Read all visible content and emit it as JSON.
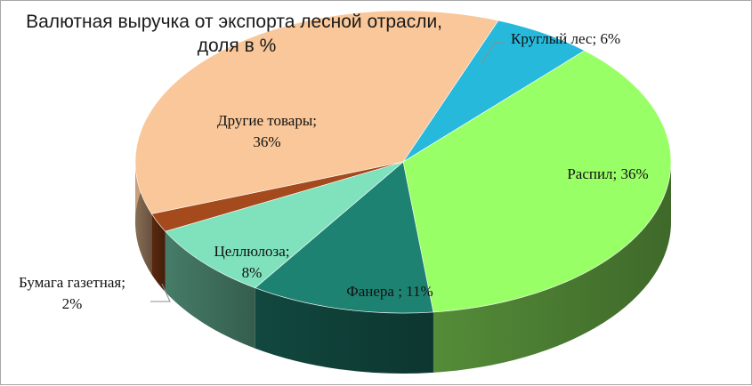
{
  "chart_data": {
    "type": "pie",
    "title_lines": [
      "Валютная выручка от экспорта лесной отрасли,",
      "доля в  %"
    ],
    "slices": [
      {
        "name": "Круглый лес",
        "value": 6,
        "color": "#27b9dc",
        "label_lines": [
          "Круглый лес; 6%"
        ]
      },
      {
        "name": "Распил",
        "value": 36,
        "color": "#99ff66",
        "label_lines": [
          "Распил; 36%"
        ]
      },
      {
        "name": "Фанера",
        "value": 11,
        "color": "#1e8272",
        "label_lines": [
          "Фанера ; 11%"
        ]
      },
      {
        "name": "Целлюлоза",
        "value": 8,
        "color": "#7fe2bd",
        "label_lines": [
          "Целлюлоза;",
          "8%"
        ]
      },
      {
        "name": "Бумага газетная",
        "value": 2,
        "color": "#a44a1c",
        "label_lines": [
          "Бумага газетная;",
          "2%"
        ]
      },
      {
        "name": "Другие товары",
        "value": 36,
        "color": "#f9c799",
        "label_lines": [
          "Другие товары;",
          "36%"
        ]
      }
    ]
  }
}
